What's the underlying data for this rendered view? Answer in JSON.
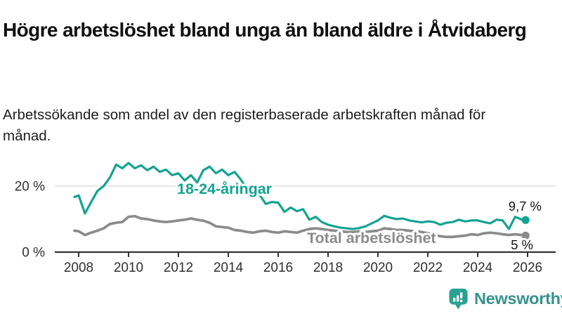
{
  "header": {
    "title": "Högre arbetslöshet bland unga än bland äldre i Åtvidaberg",
    "subtitle": "Arbetssökande som andel av den registerbaserade arbetskraften månad för månad."
  },
  "footer": {
    "brand": "Newsworthy",
    "logo_icon": "newsworthy-chart-bubble-icon"
  },
  "colors": {
    "young_line": "#14a392",
    "total_line": "#8b8b8b",
    "grid": "#dedede",
    "axis": "#333333",
    "label_text": "#2f2f2f",
    "value_text": "#141414",
    "brand_icon": "#2aa292",
    "brand_text": "#37918b",
    "background": "#ffffff"
  },
  "chart_data": {
    "type": "line",
    "title": "",
    "xlabel": "",
    "ylabel": "",
    "grid": "single horizontal gridline at 20 %",
    "legend_position": "inline labels on lines",
    "y_axis": {
      "tick_values": [
        20,
        0
      ],
      "tick_labels": [
        "20 %",
        "0 %"
      ],
      "range": [
        0,
        28
      ]
    },
    "x_axis": {
      "ticks": [
        2008,
        2010,
        2012,
        2014,
        2016,
        2018,
        2020,
        2022,
        2024,
        2026
      ],
      "range": [
        2007.8,
        2026.1
      ]
    },
    "x": [
      2007.83,
      2008,
      2008.25,
      2008.5,
      2008.75,
      2009,
      2009.25,
      2009.5,
      2009.75,
      2010,
      2010.25,
      2010.5,
      2010.75,
      2011,
      2011.25,
      2011.5,
      2011.75,
      2012,
      2012.25,
      2012.5,
      2012.75,
      2013,
      2013.25,
      2013.5,
      2013.75,
      2014,
      2014.25,
      2014.5,
      2014.75,
      2015,
      2015.25,
      2015.5,
      2015.75,
      2016,
      2016.25,
      2016.5,
      2016.75,
      2017,
      2017.25,
      2017.5,
      2017.75,
      2018,
      2018.25,
      2018.5,
      2018.75,
      2019,
      2019.25,
      2019.5,
      2019.75,
      2020,
      2020.25,
      2020.5,
      2020.75,
      2021,
      2021.25,
      2021.5,
      2021.75,
      2022,
      2022.25,
      2022.5,
      2022.75,
      2023,
      2023.25,
      2023.5,
      2023.75,
      2024,
      2024.25,
      2024.5,
      2024.75,
      2025,
      2025.25,
      2025.5,
      2025.75,
      2025.92
    ],
    "series": [
      {
        "name": "18-24-åringar",
        "color": "#14a392",
        "end_label": "9,7 %",
        "end_value": 9.7,
        "values": [
          16.7,
          17.2,
          11.7,
          15.2,
          18.5,
          20,
          22.6,
          26.5,
          25.4,
          27,
          25.4,
          26.3,
          24.8,
          25.9,
          24.3,
          25,
          23.3,
          23.9,
          21.7,
          23.3,
          21.1,
          24.8,
          25.9,
          23.9,
          25,
          23.3,
          24.3,
          22,
          19,
          16.5,
          17.4,
          14.6,
          15.2,
          15,
          12.2,
          13.5,
          12.4,
          13,
          9.8,
          10.7,
          9.1,
          8.3,
          7.8,
          7.4,
          7.2,
          7,
          7.3,
          7.8,
          8.7,
          9.6,
          11,
          10.4,
          10,
          10.2,
          9.6,
          9.3,
          9,
          9.3,
          9.1,
          8.3,
          8.9,
          9.1,
          9.8,
          9.3,
          9.6,
          9.6,
          9.1,
          8.7,
          9.8,
          9.6,
          7,
          10.7,
          9.9,
          9.7
        ]
      },
      {
        "name": "Total arbetslöshet",
        "color": "#8b8b8b",
        "end_label": "5 %",
        "end_value": 5.0,
        "values": [
          6.5,
          6.3,
          5.2,
          5.9,
          6.5,
          7.2,
          8.5,
          8.9,
          9.1,
          10.7,
          10.9,
          10.2,
          10,
          9.6,
          9.3,
          9.1,
          9.3,
          9.6,
          9.8,
          10.2,
          9.8,
          9.5,
          8.9,
          7.8,
          7.6,
          7.4,
          6.7,
          6.5,
          6.1,
          5.9,
          6.3,
          6.5,
          6.1,
          5.9,
          6.3,
          6.1,
          5.9,
          6.5,
          7,
          7.2,
          7,
          6.7,
          6.5,
          6.3,
          6.1,
          6.1,
          6.3,
          6.1,
          6.3,
          6.5,
          7.2,
          7,
          6.7,
          6.7,
          6.5,
          6.3,
          6.1,
          5.7,
          5.2,
          4.8,
          4.6,
          4.6,
          4.8,
          5,
          5.4,
          5.2,
          5.7,
          5.9,
          5.7,
          5.4,
          5.2,
          5.4,
          5.2,
          5
        ]
      }
    ]
  }
}
